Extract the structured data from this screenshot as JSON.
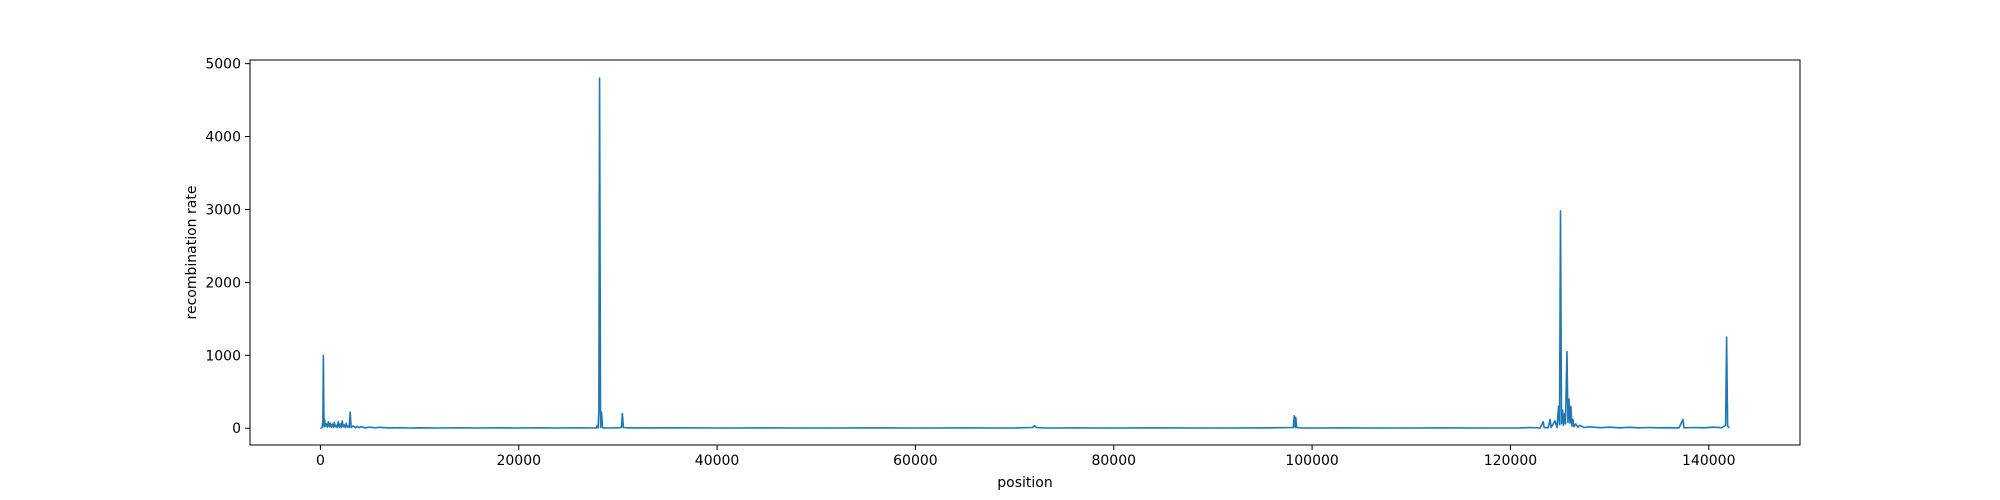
{
  "chart_data": {
    "type": "line",
    "title": "",
    "xlabel": "position",
    "ylabel": "recombination rate",
    "xlim": [
      -7100,
      149200
    ],
    "ylim": [
      -230,
      5050
    ],
    "xticks": [
      0,
      20000,
      40000,
      60000,
      80000,
      100000,
      120000,
      140000
    ],
    "yticks": [
      0,
      1000,
      2000,
      3000,
      4000,
      5000
    ],
    "grid": false,
    "legend": "none",
    "color": "#1f77b4",
    "series": [
      {
        "points": [
          [
            0,
            0
          ],
          [
            150,
            5
          ],
          [
            250,
            80
          ],
          [
            300,
            1000
          ],
          [
            360,
            20
          ],
          [
            420,
            120
          ],
          [
            500,
            30
          ],
          [
            600,
            60
          ],
          [
            700,
            15
          ],
          [
            800,
            90
          ],
          [
            900,
            20
          ],
          [
            1000,
            70
          ],
          [
            1100,
            15
          ],
          [
            1200,
            55
          ],
          [
            1300,
            10
          ],
          [
            1400,
            80
          ],
          [
            1500,
            20
          ],
          [
            1600,
            40
          ],
          [
            1700,
            10
          ],
          [
            1800,
            90
          ],
          [
            1900,
            15
          ],
          [
            2000,
            60
          ],
          [
            2100,
            10
          ],
          [
            2200,
            100
          ],
          [
            2300,
            20
          ],
          [
            2400,
            45
          ],
          [
            2500,
            10
          ],
          [
            2600,
            70
          ],
          [
            2700,
            15
          ],
          [
            2800,
            30
          ],
          [
            2900,
            10
          ],
          [
            3000,
            220
          ],
          [
            3100,
            10
          ],
          [
            3300,
            30
          ],
          [
            3500,
            8
          ],
          [
            3700,
            25
          ],
          [
            3900,
            8
          ],
          [
            4100,
            20
          ],
          [
            4500,
            6
          ],
          [
            5000,
            15
          ],
          [
            5500,
            5
          ],
          [
            6000,
            12
          ],
          [
            7000,
            4
          ],
          [
            8000,
            8
          ],
          [
            9000,
            3
          ],
          [
            10000,
            5
          ],
          [
            12000,
            3
          ],
          [
            14000,
            5
          ],
          [
            16000,
            3
          ],
          [
            18000,
            5
          ],
          [
            20000,
            3
          ],
          [
            22000,
            5
          ],
          [
            24000,
            3
          ],
          [
            26000,
            5
          ],
          [
            27800,
            3
          ],
          [
            27900,
            30
          ],
          [
            28000,
            2
          ],
          [
            28080,
            250
          ],
          [
            28150,
            4800
          ],
          [
            28250,
            10
          ],
          [
            28350,
            220
          ],
          [
            28450,
            5
          ],
          [
            29000,
            3
          ],
          [
            30000,
            5
          ],
          [
            30350,
            10
          ],
          [
            30450,
            200
          ],
          [
            30550,
            10
          ],
          [
            31000,
            5
          ],
          [
            33000,
            4
          ],
          [
            36000,
            5
          ],
          [
            40000,
            3
          ],
          [
            45000,
            4
          ],
          [
            50000,
            3
          ],
          [
            55000,
            4
          ],
          [
            60000,
            3
          ],
          [
            65000,
            4
          ],
          [
            70000,
            3
          ],
          [
            71800,
            10
          ],
          [
            72000,
            35
          ],
          [
            72200,
            10
          ],
          [
            73000,
            3
          ],
          [
            76000,
            4
          ],
          [
            80000,
            3
          ],
          [
            85000,
            4
          ],
          [
            90000,
            3
          ],
          [
            95000,
            4
          ],
          [
            98100,
            10
          ],
          [
            98200,
            170
          ],
          [
            98300,
            10
          ],
          [
            98350,
            150
          ],
          [
            98450,
            10
          ],
          [
            99000,
            3
          ],
          [
            103000,
            4
          ],
          [
            108000,
            3
          ],
          [
            113000,
            4
          ],
          [
            118000,
            3
          ],
          [
            121000,
            4
          ],
          [
            122000,
            10
          ],
          [
            123000,
            3
          ],
          [
            123300,
            90
          ],
          [
            123400,
            10
          ],
          [
            123800,
            5
          ],
          [
            124000,
            120
          ],
          [
            124100,
            10
          ],
          [
            124500,
            100
          ],
          [
            124700,
            10
          ],
          [
            124850,
            300
          ],
          [
            124950,
            50
          ],
          [
            125050,
            2980
          ],
          [
            125150,
            60
          ],
          [
            125250,
            250
          ],
          [
            125350,
            40
          ],
          [
            125450,
            200
          ],
          [
            125550,
            60
          ],
          [
            125700,
            1050
          ],
          [
            125800,
            80
          ],
          [
            125900,
            400
          ],
          [
            126000,
            70
          ],
          [
            126100,
            300
          ],
          [
            126200,
            30
          ],
          [
            126300,
            120
          ],
          [
            126400,
            20
          ],
          [
            126600,
            60
          ],
          [
            126800,
            15
          ],
          [
            127000,
            40
          ],
          [
            127400,
            10
          ],
          [
            128000,
            20
          ],
          [
            129000,
            8
          ],
          [
            130000,
            15
          ],
          [
            131000,
            6
          ],
          [
            132000,
            12
          ],
          [
            133000,
            5
          ],
          [
            134000,
            10
          ],
          [
            135000,
            5
          ],
          [
            136000,
            8
          ],
          [
            137000,
            5
          ],
          [
            137400,
            120
          ],
          [
            137500,
            5
          ],
          [
            138500,
            10
          ],
          [
            139500,
            5
          ],
          [
            140500,
            15
          ],
          [
            141300,
            8
          ],
          [
            141700,
            40
          ],
          [
            141800,
            1250
          ],
          [
            141900,
            30
          ],
          [
            142000,
            15
          ],
          [
            142100,
            8
          ]
        ]
      }
    ]
  }
}
